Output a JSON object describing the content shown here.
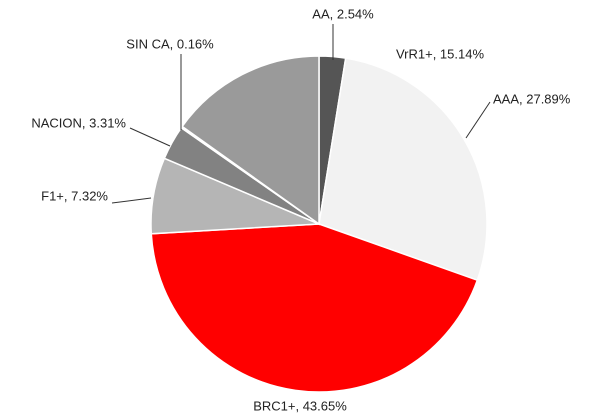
{
  "chart_data": {
    "type": "pie",
    "values": [
      2.54,
      27.89,
      43.65,
      7.32,
      3.31,
      0.16,
      15.14
    ],
    "value_labels": [
      "AA, 2.54%",
      "AAA, 27.89%",
      "BRC1+, 43.65%",
      "F1+, 7.32%",
      "NACION, 3.31%",
      "SIN CA, 0.16%",
      "VrR1+, 15.14%"
    ],
    "colors": [
      "#555555",
      "#f2f2f2",
      "#ff0000",
      "#b5b5b5",
      "#828282",
      "#ffffff",
      "#9a9a9a"
    ]
  }
}
